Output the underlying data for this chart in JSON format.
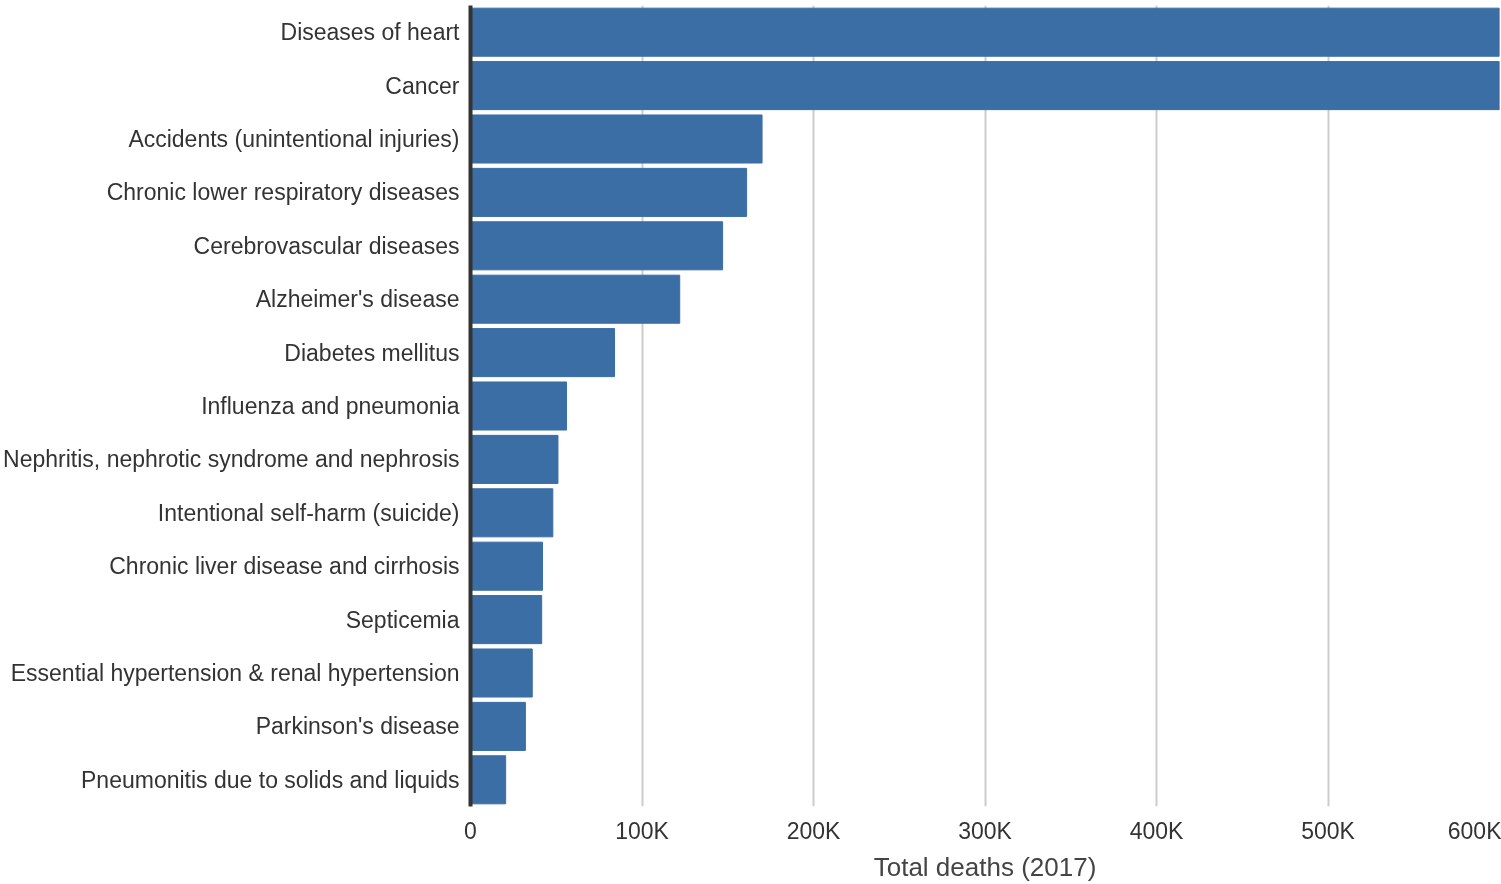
{
  "chart_data": {
    "type": "bar",
    "orientation": "horizontal",
    "xlabel": "Total deaths (2017)",
    "categories": [
      "Diseases of heart",
      "Cancer",
      "Accidents (unintentional injuries)",
      "Chronic lower respiratory diseases",
      "Cerebrovascular diseases",
      "Alzheimer's disease",
      "Diabetes mellitus",
      "Influenza and pneumonia",
      "Nephritis, nephrotic syndrome and nephrosis",
      "Intentional self-harm (suicide)",
      "Chronic liver disease and cirrhosis",
      "Septicemia",
      "Essential hypertension & renal hypertension",
      "Parkinson's disease",
      "Pneumonitis due to solids and liquids"
    ],
    "values": [
      600000,
      600000,
      170000,
      161000,
      147000,
      122000,
      84000,
      56000,
      51000,
      48000,
      42000,
      41500,
      36000,
      32000,
      20500
    ],
    "color": "#3a6ea5",
    "xlim": [
      0,
      600000
    ],
    "xticks": [
      0,
      {
        "value": 100000,
        "label": "100K"
      },
      {
        "value": 200000,
        "label": "200K"
      },
      {
        "value": 300000,
        "label": "300K"
      },
      {
        "value": 400000,
        "label": "400K"
      },
      {
        "value": 500000,
        "label": "500K"
      },
      {
        "value": 600000,
        "label": "600K"
      }
    ],
    "grid": "x"
  }
}
